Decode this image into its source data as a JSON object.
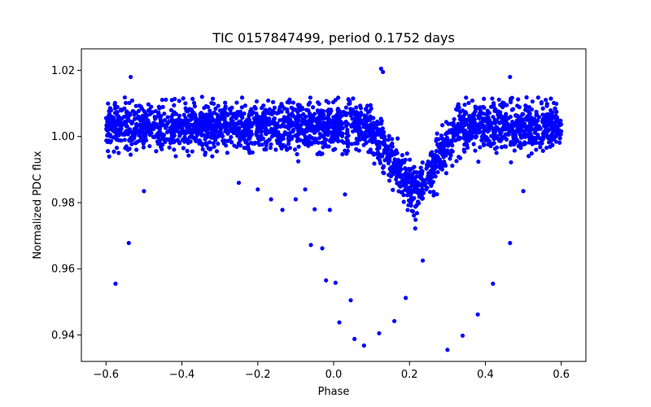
{
  "chart_data": {
    "type": "scatter",
    "title": "TIC 0157847499, period 0.1752 days",
    "xlabel": "Phase",
    "ylabel": "Normalized PDC flux",
    "xlim": [
      -0.665,
      0.665
    ],
    "ylim": [
      0.932,
      1.0265
    ],
    "xticks": [
      -0.6,
      -0.4,
      -0.2,
      0.0,
      0.2,
      0.4,
      0.6
    ],
    "xtick_labels": [
      "−0.6",
      "−0.4",
      "−0.2",
      "0.0",
      "0.2",
      "0.4",
      "0.6"
    ],
    "yticks": [
      0.94,
      0.96,
      0.98,
      1.0,
      1.02
    ],
    "ytick_labels": [
      "0.94",
      "0.96",
      "0.98",
      "1.00",
      "1.02"
    ],
    "grid": false,
    "marker_color": "#0000ff",
    "series": [
      {
        "x_range": [
          -0.6,
          0.6
        ],
        "baseline": 1.003,
        "baseline_scatter": 0.0035,
        "upper_envelope": 1.012,
        "lower_envelope": 0.996,
        "dip_center_phase": 0.215,
        "dip_min_flux": 0.983,
        "dip_left_edge_phase": 0.09,
        "dip_right_edge_phase": 0.33,
        "outliers": [
          {
            "x": -0.575,
            "y": 0.9555
          },
          {
            "x": -0.54,
            "y": 0.9678
          },
          {
            "x": -0.535,
            "y": 1.018
          },
          {
            "x": -0.5,
            "y": 0.9835
          },
          {
            "x": -0.25,
            "y": 0.986
          },
          {
            "x": -0.2,
            "y": 0.984
          },
          {
            "x": -0.165,
            "y": 0.981
          },
          {
            "x": -0.135,
            "y": 0.9778
          },
          {
            "x": -0.1,
            "y": 0.981
          },
          {
            "x": -0.075,
            "y": 0.984
          },
          {
            "x": -0.06,
            "y": 0.9672
          },
          {
            "x": -0.05,
            "y": 0.978
          },
          {
            "x": -0.03,
            "y": 0.9662
          },
          {
            "x": -0.02,
            "y": 0.9565
          },
          {
            "x": -0.01,
            "y": 0.9778
          },
          {
            "x": 0.005,
            "y": 0.9558
          },
          {
            "x": 0.015,
            "y": 0.9438
          },
          {
            "x": 0.03,
            "y": 0.9825
          },
          {
            "x": 0.045,
            "y": 0.9505
          },
          {
            "x": 0.055,
            "y": 0.9388
          },
          {
            "x": 0.08,
            "y": 0.9368
          },
          {
            "x": 0.12,
            "y": 0.9405
          },
          {
            "x": 0.125,
            "y": 1.0205
          },
          {
            "x": 0.13,
            "y": 1.0195
          },
          {
            "x": 0.16,
            "y": 0.9442
          },
          {
            "x": 0.19,
            "y": 0.9512
          },
          {
            "x": 0.215,
            "y": 0.9722
          },
          {
            "x": 0.235,
            "y": 0.9625
          },
          {
            "x": 0.3,
            "y": 0.9355
          },
          {
            "x": 0.34,
            "y": 0.9398
          },
          {
            "x": 0.38,
            "y": 0.9462
          },
          {
            "x": 0.42,
            "y": 0.9555
          },
          {
            "x": 0.465,
            "y": 0.9678
          },
          {
            "x": 0.465,
            "y": 1.018
          },
          {
            "x": 0.5,
            "y": 0.9835
          }
        ]
      }
    ]
  }
}
